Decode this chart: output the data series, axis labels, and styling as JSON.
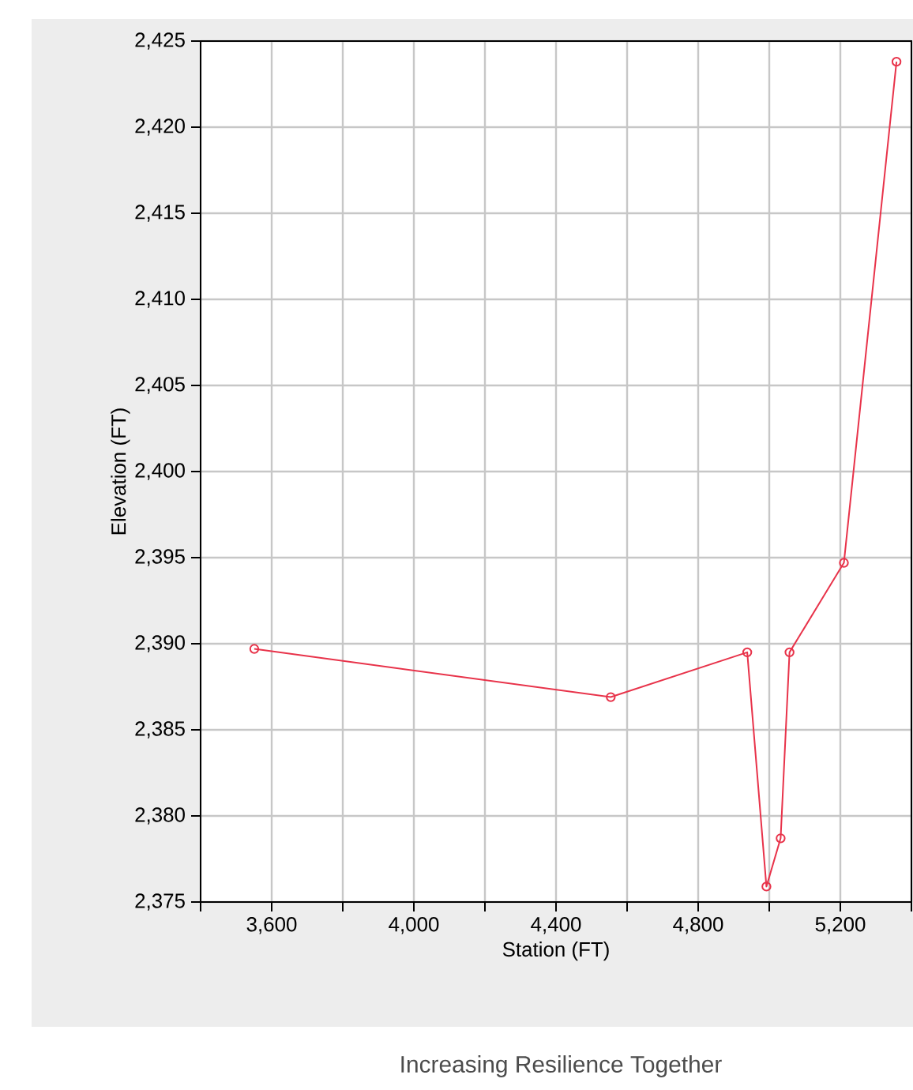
{
  "chart_data": {
    "type": "line",
    "xlabel": "Station (FT)",
    "ylabel": "Elevation (FT)",
    "x": [
      3551,
      4554,
      4938,
      4992,
      5032,
      5057,
      5210,
      5358
    ],
    "series": [
      {
        "color": "#e8334a",
        "values": [
          2389.7,
          2386.9,
          2389.5,
          2375.9,
          2378.7,
          2389.5,
          2394.7,
          2423.8
        ]
      }
    ],
    "xlim": [
      3400,
      5400
    ],
    "xticks": [
      {
        "value": 3400,
        "label": null
      },
      {
        "value": 3600,
        "label": "3,600"
      },
      {
        "value": 3800,
        "label": null
      },
      {
        "value": 4000,
        "label": "4,000"
      },
      {
        "value": 4200,
        "label": null
      },
      {
        "value": 4400,
        "label": "4,400"
      },
      {
        "value": 4600,
        "label": null
      },
      {
        "value": 4800,
        "label": "4,800"
      },
      {
        "value": 5000,
        "label": null
      },
      {
        "value": 5200,
        "label": "5,200"
      },
      {
        "value": 5400,
        "label": null
      }
    ],
    "ylim": [
      2375,
      2425
    ],
    "yticks": [
      {
        "value": 2375,
        "label": "2,375"
      },
      {
        "value": 2380,
        "label": "2,380"
      },
      {
        "value": 2385,
        "label": "2,385"
      },
      {
        "value": 2390,
        "label": "2,390"
      },
      {
        "value": 2395,
        "label": "2,395"
      },
      {
        "value": 2400,
        "label": "2,400"
      },
      {
        "value": 2405,
        "label": "2,405"
      },
      {
        "value": 2410,
        "label": "2,410"
      },
      {
        "value": 2415,
        "label": "2,415"
      },
      {
        "value": 2420,
        "label": "2,420"
      },
      {
        "value": 2425,
        "label": "2,425"
      }
    ],
    "grid": true,
    "marker": "circle",
    "line_style": "solid",
    "annotations": [
      "Increasing Resilience Together"
    ]
  }
}
